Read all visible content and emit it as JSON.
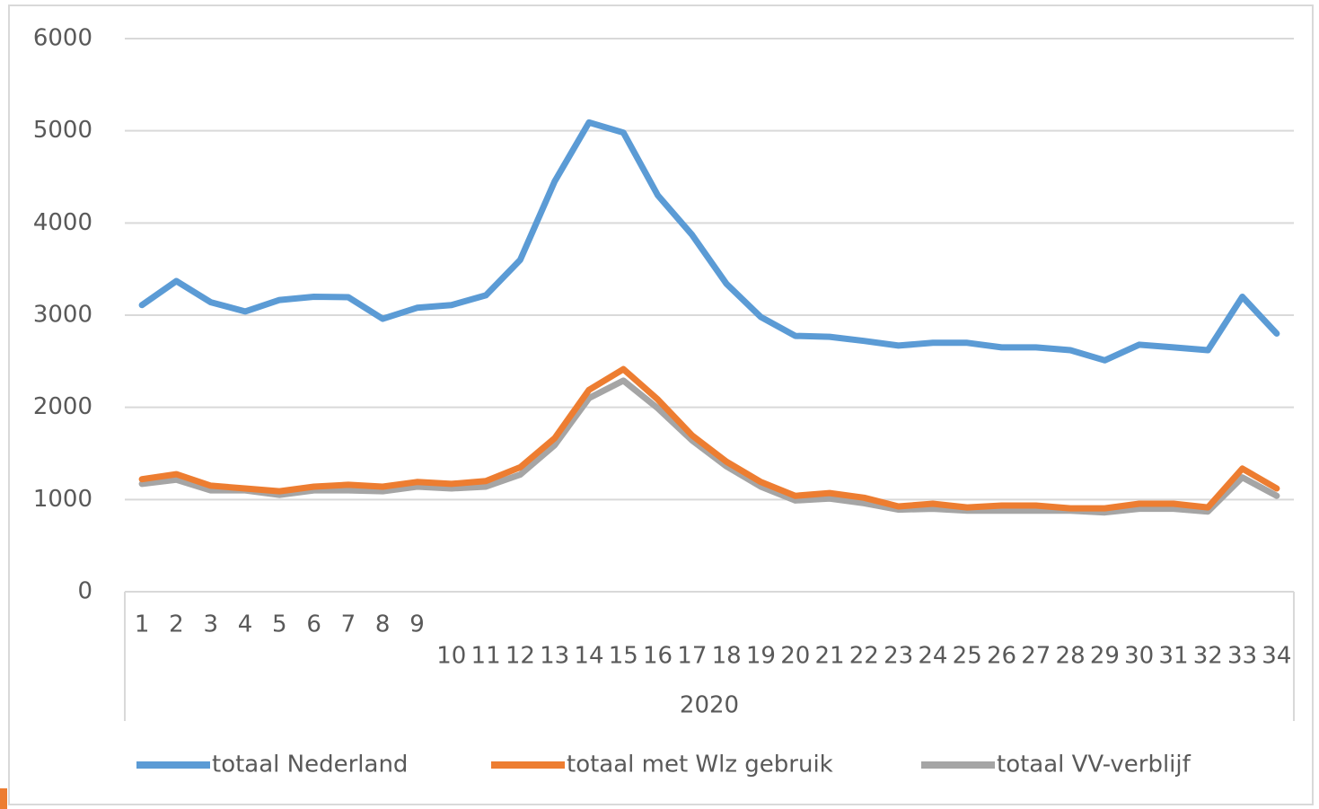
{
  "chart_data": {
    "type": "line",
    "categories": [
      "1",
      "2",
      "3",
      "4",
      "5",
      "6",
      "7",
      "8",
      "9",
      "10",
      "11",
      "12",
      "13",
      "14",
      "15",
      "16",
      "17",
      "18",
      "19",
      "20",
      "21",
      "22",
      "23",
      "24",
      "25",
      "26",
      "27",
      "28",
      "29",
      "30",
      "31",
      "32",
      "33",
      "34"
    ],
    "category_group": "2020",
    "series": [
      {
        "name": "totaal Nederland",
        "color": "#5b9bd5",
        "values": [
          3110,
          3370,
          3140,
          3040,
          3165,
          3200,
          3195,
          2960,
          3080,
          3110,
          3215,
          3600,
          4450,
          5090,
          4980,
          4300,
          3870,
          3340,
          2980,
          2775,
          2765,
          2720,
          2670,
          2700,
          2700,
          2650,
          2650,
          2620,
          2510,
          2680,
          2650,
          2620,
          3200,
          2800
        ]
      },
      {
        "name": "totaal met Wlz gebruik",
        "color": "#ed7d31",
        "values": [
          1220,
          1275,
          1150,
          1120,
          1090,
          1140,
          1160,
          1140,
          1190,
          1170,
          1200,
          1350,
          1665,
          2190,
          2415,
          2085,
          1695,
          1410,
          1190,
          1040,
          1070,
          1020,
          925,
          955,
          915,
          935,
          935,
          905,
          905,
          955,
          955,
          915,
          1335,
          1120
        ]
      },
      {
        "name": "totaal VV-verblijf",
        "color": "#a5a5a5",
        "values": [
          1170,
          1215,
          1100,
          1100,
          1050,
          1100,
          1100,
          1090,
          1140,
          1120,
          1140,
          1270,
          1590,
          2100,
          2290,
          1990,
          1640,
          1360,
          1140,
          990,
          1010,
          960,
          890,
          900,
          880,
          880,
          880,
          880,
          860,
          900,
          900,
          870,
          1240,
          1040
        ]
      }
    ],
    "ylim": [
      0,
      6000
    ],
    "yticks": [
      0,
      1000,
      2000,
      3000,
      4000,
      5000,
      6000
    ],
    "grid": true,
    "legend": "bottom"
  }
}
